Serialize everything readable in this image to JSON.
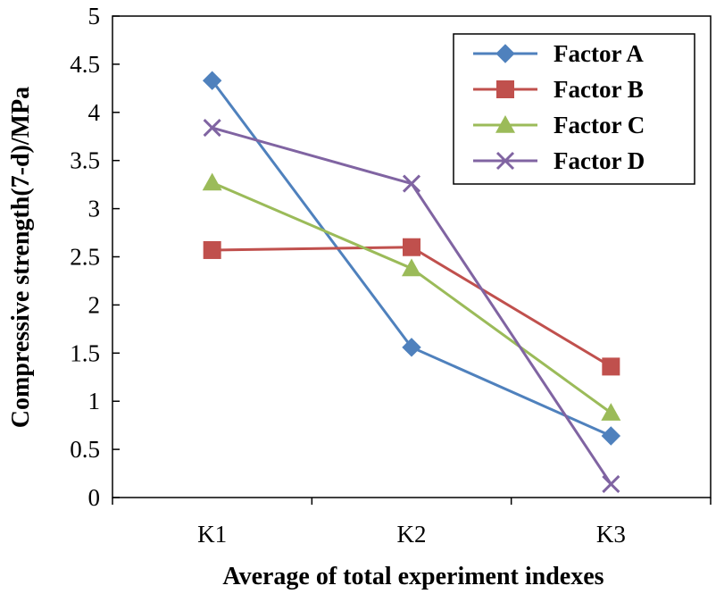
{
  "chart_data": {
    "type": "line",
    "title": "",
    "xlabel": "Average of total experiment indexes",
    "ylabel": "Compressive strength(7-d)/MPa",
    "categories": [
      "K1",
      "K2",
      "K3"
    ],
    "ylim": [
      0,
      5
    ],
    "yticks": [
      0,
      0.5,
      1,
      1.5,
      2,
      2.5,
      3,
      3.5,
      4,
      4.5,
      5
    ],
    "ytick_labels": [
      "0",
      "0.5",
      "1",
      "1.5",
      "2",
      "2.5",
      "3",
      "3.5",
      "4",
      "4.5",
      "5"
    ],
    "grid": false,
    "legend_position": "top-right",
    "series": [
      {
        "name": "Factor A",
        "values": [
          4.33,
          1.56,
          0.64
        ],
        "color": "#4F81BD",
        "marker": "diamond"
      },
      {
        "name": "Factor B",
        "values": [
          2.57,
          2.6,
          1.36
        ],
        "color": "#C0504D",
        "marker": "square"
      },
      {
        "name": "Factor C",
        "values": [
          3.27,
          2.38,
          0.88
        ],
        "color": "#9BBB59",
        "marker": "triangle"
      },
      {
        "name": "Factor D",
        "values": [
          3.84,
          3.26,
          0.14
        ],
        "color": "#8064A2",
        "marker": "x"
      }
    ]
  }
}
